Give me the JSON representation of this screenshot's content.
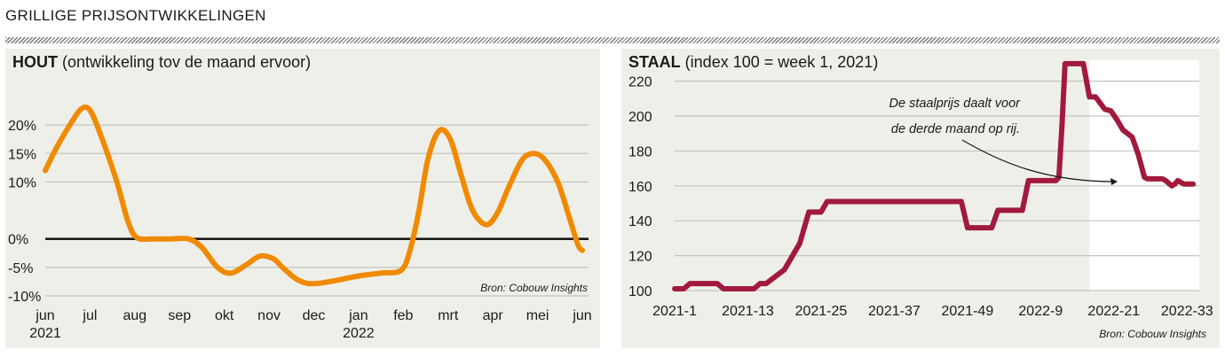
{
  "title": "GRILLIGE PRIJSONTWIKKELINGEN",
  "chart_data": [
    {
      "type": "line",
      "title_bold": "HOUT",
      "title_rest": " (ontwikkeling tov de maand ervoor)",
      "source": "Bron: Cobouw Insights",
      "color": "#f08a00",
      "zero_line": true,
      "ylim": [
        -10,
        25
      ],
      "yticks": [
        20,
        15,
        10,
        0,
        -5,
        -10
      ],
      "ytick_labels": [
        "20%",
        "15%",
        "10%",
        "0%",
        "-5%",
        "-10%"
      ],
      "xlim": [
        0,
        12
      ],
      "xticks": [
        {
          "x": 0,
          "label": "jun",
          "sub": "2021"
        },
        {
          "x": 1,
          "label": "jul",
          "sub": ""
        },
        {
          "x": 2,
          "label": "aug",
          "sub": ""
        },
        {
          "x": 3,
          "label": "sep",
          "sub": ""
        },
        {
          "x": 4,
          "label": "okt",
          "sub": ""
        },
        {
          "x": 5,
          "label": "nov",
          "sub": ""
        },
        {
          "x": 6,
          "label": "dec",
          "sub": ""
        },
        {
          "x": 7,
          "label": "jan",
          "sub": "2022"
        },
        {
          "x": 8,
          "label": "feb",
          "sub": ""
        },
        {
          "x": 9,
          "label": "mrt",
          "sub": ""
        },
        {
          "x": 10,
          "label": "apr",
          "sub": ""
        },
        {
          "x": 11,
          "label": "mei",
          "sub": ""
        },
        {
          "x": 12,
          "label": "jun",
          "sub": ""
        }
      ],
      "x": [
        0,
        0.25,
        0.55,
        0.8,
        1.0,
        1.25,
        1.6,
        1.85,
        2.05,
        2.4,
        2.8,
        3.2,
        3.5,
        3.85,
        4.15,
        4.5,
        4.8,
        5.1,
        5.3,
        5.6,
        5.85,
        6.1,
        6.5,
        7.0,
        7.5,
        7.95,
        8.15,
        8.35,
        8.55,
        8.8,
        9.05,
        9.3,
        9.55,
        9.85,
        10.1,
        10.35,
        10.65,
        10.9,
        11.15,
        11.45,
        11.7,
        11.9,
        12.0
      ],
      "y": [
        12,
        16,
        20,
        22.8,
        22.6,
        18,
        10,
        3,
        0.2,
        0,
        0,
        0,
        -1.5,
        -5,
        -6,
        -4.5,
        -3,
        -3.5,
        -5,
        -7,
        -7.8,
        -7.8,
        -7.3,
        -6.5,
        -6,
        -5.5,
        -2,
        5,
        14,
        19,
        17.5,
        11,
        5,
        2.5,
        4.5,
        9,
        13.8,
        15,
        14,
        10,
        4,
        -1,
        -2
      ]
    },
    {
      "type": "line",
      "title_bold": "STAAL",
      "title_rest": " (index 100 = week 1, 2021)",
      "source": "Bron: Cobouw Insights",
      "color": "#a11a3c",
      "annotation_lines": [
        "De staalprijs daalt voor",
        "de derde maand op rij."
      ],
      "ylim": [
        100,
        232
      ],
      "yticks": [
        100,
        120,
        140,
        160,
        180,
        200,
        220
      ],
      "xlim": [
        1,
        87
      ],
      "xticks": [
        1,
        13,
        25,
        37,
        49,
        61,
        73,
        85
      ],
      "xtick_labels": [
        "2021-1",
        "2021-13",
        "2021-25",
        "2021-37",
        "2021-49",
        "2022-9",
        "2022-21",
        "2022-33"
      ],
      "highlight_from": 69,
      "x": [
        1,
        2.5,
        3.5,
        8,
        9,
        14,
        15,
        16,
        17.5,
        19,
        20.5,
        21.5,
        23,
        24,
        25,
        26,
        48,
        49,
        53,
        54,
        58,
        59,
        63.5,
        64,
        64.5,
        65,
        66,
        68,
        69,
        70,
        71.5,
        72.5,
        73.5,
        74.5,
        76,
        77,
        78,
        78.5,
        80,
        81,
        81.5,
        82.5,
        83,
        83.5,
        84.5,
        86
      ],
      "y": [
        101,
        101,
        104,
        104,
        101,
        101,
        104,
        104,
        108,
        112,
        121,
        127,
        145,
        145,
        145,
        151,
        151,
        136,
        136,
        146,
        146,
        163,
        163,
        165,
        195,
        230,
        230,
        230,
        211,
        211,
        204,
        203,
        198,
        192,
        188,
        178,
        165,
        164,
        164,
        164,
        163,
        160,
        161,
        163,
        161,
        161
      ]
    }
  ]
}
